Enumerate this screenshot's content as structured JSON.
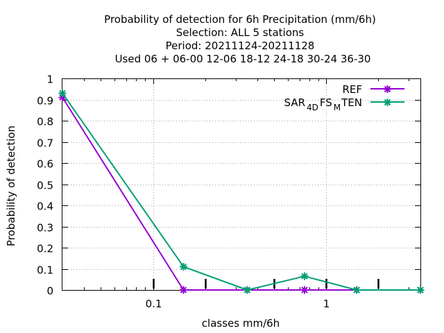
{
  "chart_data": {
    "type": "line",
    "title_lines": [
      "Probability of detection  for 6h Precipitation (mm/6h)",
      "Selection: ALL      5 stations",
      "Period: 20211124-20211128",
      "Used  06 + 06-00 12-06 18-12 24-18 30-24 36-30"
    ],
    "xlabel": "classes mm/6h",
    "ylabel": "Probability of detection",
    "x_scale": "log",
    "xlim": [
      0.03,
      3.5
    ],
    "ylim": [
      0,
      1
    ],
    "x_ticks": [
      {
        "value": 0.1,
        "label": "0.1"
      },
      {
        "value": 1,
        "label": "1"
      }
    ],
    "y_ticks": [
      {
        "value": 0,
        "label": "0"
      },
      {
        "value": 0.1,
        "label": "0.1"
      },
      {
        "value": 0.2,
        "label": "0.2"
      },
      {
        "value": 0.3,
        "label": "0.3"
      },
      {
        "value": 0.4,
        "label": "0.4"
      },
      {
        "value": 0.5,
        "label": "0.5"
      },
      {
        "value": 0.6,
        "label": "0.6"
      },
      {
        "value": 0.7,
        "label": "0.7"
      },
      {
        "value": 0.8,
        "label": "0.8"
      },
      {
        "value": 0.9,
        "label": "0.9"
      },
      {
        "value": 1,
        "label": "1"
      }
    ],
    "grid": true,
    "legend_position": "top-right",
    "class_marks_x": [
      0.1,
      0.2,
      0.5,
      1,
      2
    ],
    "series": [
      {
        "name": "REF",
        "color": "#9400d3",
        "x": [
          0.03,
          0.15,
          0.35,
          0.75,
          1.5,
          3.5
        ],
        "y": [
          0.91,
          0.0,
          0.0,
          0.0,
          0.0,
          0.0
        ]
      },
      {
        "name": "SAR_4DFS_MTEN",
        "legend_parts": [
          "SAR",
          "4D",
          "FS",
          "M",
          "TEN"
        ],
        "color": "#009e73",
        "x": [
          0.03,
          0.15,
          0.35,
          0.75,
          1.5,
          3.5
        ],
        "y": [
          0.93,
          0.11,
          0.0,
          0.065,
          0.0,
          0.0
        ]
      }
    ]
  }
}
